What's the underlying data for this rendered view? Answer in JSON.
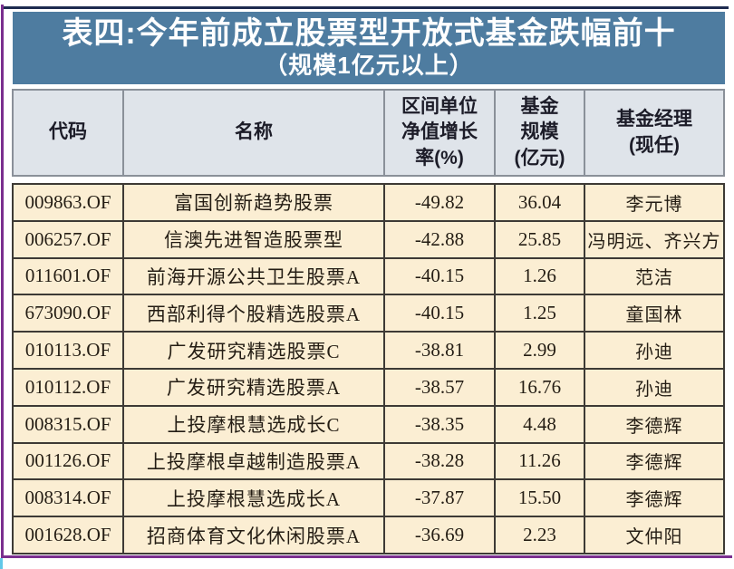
{
  "title": {
    "line1": "表四:今年前成立股票型开放式基金跌幅前十",
    "line2": "（规模1亿元以上）"
  },
  "table": {
    "headers": {
      "code": "代码",
      "name": "名称",
      "growth": "区间单位\n净值增长\n率(%)",
      "scale": "基金\n规模\n(亿元)",
      "manager": "基金经理\n(现任)"
    },
    "rows": [
      {
        "code": "009863.OF",
        "name": "富国创新趋势股票",
        "growth": "-49.82",
        "scale": "36.04",
        "manager": "李元博"
      },
      {
        "code": "006257.OF",
        "name": "信澳先进智造股票型",
        "growth": "-42.88",
        "scale": "25.85",
        "manager": "冯明远、齐兴方"
      },
      {
        "code": "011601.OF",
        "name": "前海开源公共卫生股票A",
        "growth": "-40.15",
        "scale": "1.26",
        "manager": "范洁"
      },
      {
        "code": "673090.OF",
        "name": "西部利得个股精选股票A",
        "growth": "-40.15",
        "scale": "1.25",
        "manager": "童国林"
      },
      {
        "code": "010113.OF",
        "name": "广发研究精选股票C",
        "growth": "-38.81",
        "scale": "2.99",
        "manager": "孙迪"
      },
      {
        "code": "010112.OF",
        "name": "广发研究精选股票A",
        "growth": "-38.57",
        "scale": "16.76",
        "manager": "孙迪"
      },
      {
        "code": "008315.OF",
        "name": "上投摩根慧选成长C",
        "growth": "-38.35",
        "scale": "4.48",
        "manager": "李德辉"
      },
      {
        "code": "001126.OF",
        "name": "上投摩根卓越制造股票A",
        "growth": "-38.28",
        "scale": "11.26",
        "manager": "李德辉"
      },
      {
        "code": "008314.OF",
        "name": "上投摩根慧选成长A",
        "growth": "-37.87",
        "scale": "15.50",
        "manager": "李德辉"
      },
      {
        "code": "001628.OF",
        "name": "招商体育文化休闲股票A",
        "growth": "-36.69",
        "scale": "2.23",
        "manager": "文仲阳"
      }
    ]
  },
  "chart_data": {
    "type": "table",
    "title": "表四:今年前成立股票型开放式基金跌幅前十（规模1亿元以上）",
    "columns": [
      "代码",
      "名称",
      "区间单位净值增长率(%)",
      "基金规模(亿元)",
      "基金经理(现任)"
    ],
    "rows": [
      [
        "009863.OF",
        "富国创新趋势股票",
        -49.82,
        36.04,
        "李元博"
      ],
      [
        "006257.OF",
        "信澳先进智造股票型",
        -42.88,
        25.85,
        "冯明远、齐兴方"
      ],
      [
        "011601.OF",
        "前海开源公共卫生股票A",
        -40.15,
        1.26,
        "范洁"
      ],
      [
        "673090.OF",
        "西部利得个股精选股票A",
        -40.15,
        1.25,
        "童国林"
      ],
      [
        "010113.OF",
        "广发研究精选股票C",
        -38.81,
        2.99,
        "孙迪"
      ],
      [
        "010112.OF",
        "广发研究精选股票A",
        -38.57,
        16.76,
        "孙迪"
      ],
      [
        "008315.OF",
        "上投摩根慧选成长C",
        -38.35,
        4.48,
        "李德辉"
      ],
      [
        "001126.OF",
        "上投摩根卓越制造股票A",
        -38.28,
        11.26,
        "李德辉"
      ],
      [
        "008314.OF",
        "上投摩根慧选成长A",
        -37.87,
        15.5,
        "李德辉"
      ],
      [
        "001628.OF",
        "招商体育文化休闲股票A",
        -36.69,
        2.23,
        "文仲阳"
      ]
    ]
  },
  "colors": {
    "title_bg": "#4e7ca0",
    "header_bg": "#dfe4ea",
    "row_bg": "#fbeed3",
    "frame_purple": "#7a2f8f",
    "top_line_navy": "#1d2b4f",
    "cyan_accent": "#62c8e8",
    "grid_dark": "#3d3a35",
    "grid_gray": "#8a9099"
  }
}
